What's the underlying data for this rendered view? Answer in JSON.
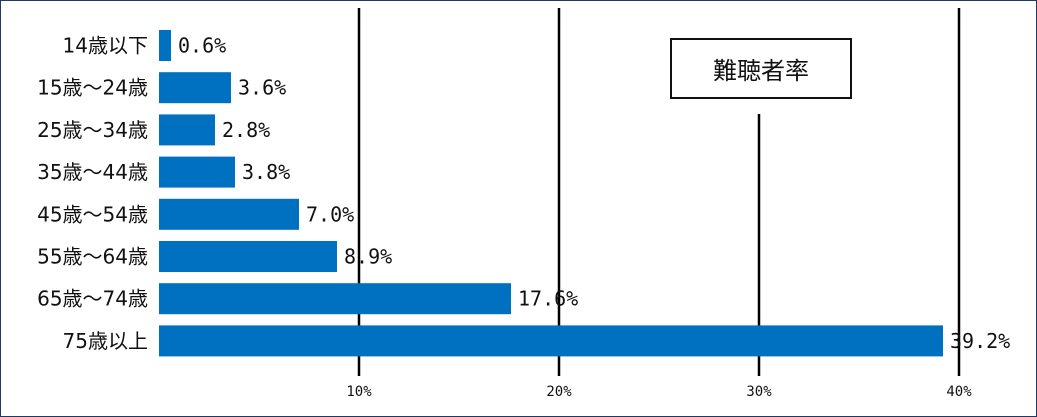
{
  "chart_data": {
    "type": "bar",
    "orientation": "horizontal",
    "title": "難聴者率",
    "categories": [
      "14歳以下",
      "15歳～24歳",
      "25歳～34歳",
      "35歳～44歳",
      "45歳～54歳",
      "55歳～64歳",
      "65歳～74歳",
      "75歳以上"
    ],
    "values": [
      0.6,
      3.6,
      2.8,
      3.8,
      7.0,
      8.9,
      17.6,
      39.2
    ],
    "value_labels": [
      "0.6%",
      "3.6%",
      "2.8%",
      "3.8%",
      "7.0%",
      "8.9%",
      "17.6%",
      "39.2%"
    ],
    "xlim": [
      0,
      40
    ],
    "xticks": [
      10,
      20,
      30,
      40
    ],
    "xtick_labels": [
      "10%",
      "20%",
      "30%",
      "40%"
    ],
    "grid": true,
    "bar_color": "#0070c0",
    "gridline_color": "#000000",
    "border_color": "#1f3864"
  }
}
